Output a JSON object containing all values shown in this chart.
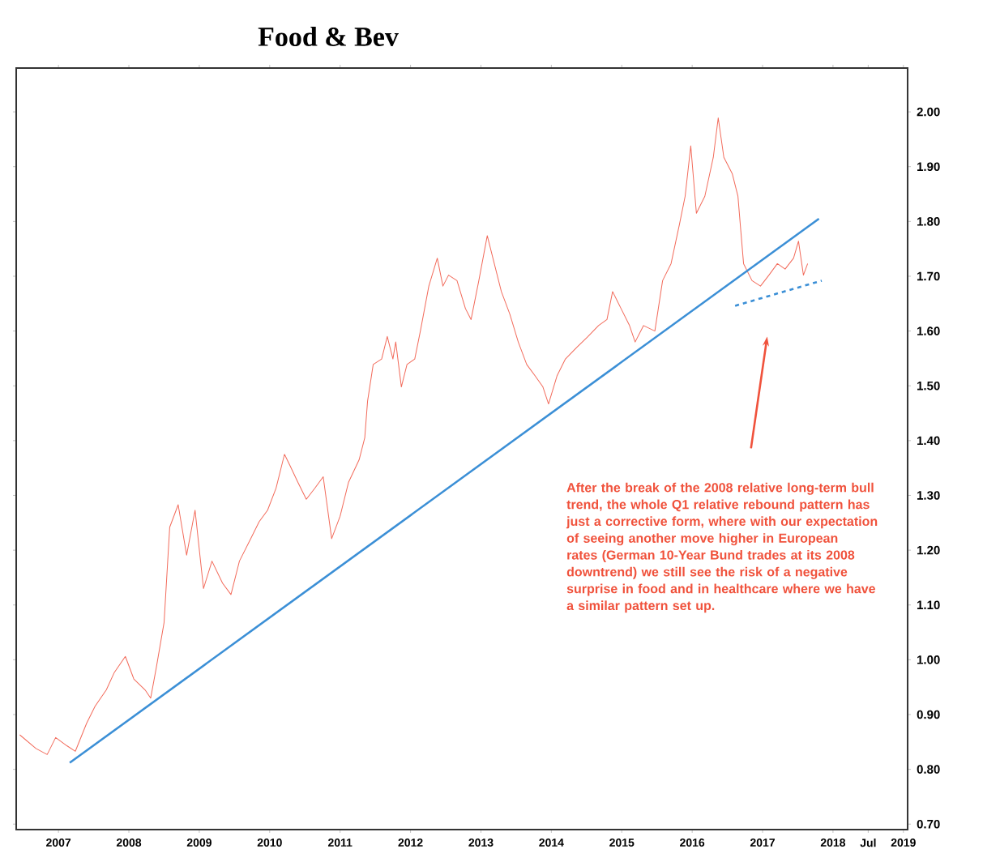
{
  "chart_data": {
    "type": "line",
    "title": "Food & Bev",
    "xlim": [
      2006.4,
      2019.06
    ],
    "ylim": [
      0.69,
      2.08
    ],
    "xticks": [
      2007,
      2008,
      2009,
      2010,
      2011,
      2012,
      2013,
      2014,
      2015,
      2016,
      2017,
      2018,
      {
        "value": 2018.5,
        "label": "Jul"
      },
      2019
    ],
    "yticks": [
      {
        "value": 0.7,
        "label": "0.70"
      },
      {
        "value": 0.8,
        "label": "0.80"
      },
      {
        "value": 0.9,
        "label": "0.90"
      },
      {
        "value": 1.0,
        "label": "1.00"
      },
      {
        "value": 1.1,
        "label": "1.10"
      },
      {
        "value": 1.2,
        "label": "1.20"
      },
      {
        "value": 1.3,
        "label": "1.30"
      },
      {
        "value": 1.4,
        "label": "1.40"
      },
      {
        "value": 1.5,
        "label": "1.50"
      },
      {
        "value": 1.6,
        "label": "1.60"
      },
      {
        "value": 1.7,
        "label": "1.70"
      },
      {
        "value": 1.8,
        "label": "1.80"
      },
      {
        "value": 1.9,
        "label": "1.90"
      },
      {
        "value": 2.0,
        "label": "2.00"
      }
    ],
    "grid": false,
    "series": [
      {
        "color": "#f26b5b",
        "x": [
          2006.45,
          2006.68,
          2006.84,
          2006.96,
          2007.12,
          2007.24,
          2007.4,
          2007.52,
          2007.68,
          2007.79,
          2007.95,
          2008.07,
          2008.23,
          2008.31,
          2008.39,
          2008.5,
          2008.58,
          2008.7,
          2008.82,
          2008.94,
          2009.06,
          2009.18,
          2009.33,
          2009.45,
          2009.57,
          2009.73,
          2009.85,
          2009.97,
          2010.09,
          2010.21,
          2010.29,
          2010.4,
          2010.52,
          2010.64,
          2010.76,
          2010.88,
          2011.0,
          2011.12,
          2011.27,
          2011.35,
          2011.39,
          2011.47,
          2011.59,
          2011.67,
          2011.75,
          2011.79,
          2011.87,
          2011.95,
          2012.06,
          2012.14,
          2012.26,
          2012.38,
          2012.46,
          2012.54,
          2012.66,
          2012.78,
          2012.86,
          2012.97,
          2013.09,
          2013.17,
          2013.29,
          2013.41,
          2013.53,
          2013.65,
          2013.77,
          2013.88,
          2013.96,
          2014.08,
          2014.2,
          2014.36,
          2014.52,
          2014.67,
          2014.79,
          2014.87,
          2014.99,
          2015.11,
          2015.19,
          2015.31,
          2015.47,
          2015.58,
          2015.7,
          2015.82,
          2015.9,
          2015.98,
          2016.06,
          2016.18,
          2016.3,
          2016.37,
          2016.45,
          2016.57,
          2016.65,
          2016.69,
          2016.73,
          2016.85,
          2016.97,
          2017.09,
          2017.21,
          2017.32,
          2017.44,
          2017.51,
          2017.58,
          2017.64
        ],
        "values": [
          0.863,
          0.838,
          0.827,
          0.858,
          0.843,
          0.833,
          0.884,
          0.915,
          0.945,
          0.976,
          1.006,
          0.965,
          0.945,
          0.93,
          0.986,
          1.068,
          1.242,
          1.283,
          1.191,
          1.273,
          1.13,
          1.18,
          1.14,
          1.119,
          1.18,
          1.221,
          1.252,
          1.273,
          1.313,
          1.375,
          1.354,
          1.324,
          1.293,
          1.313,
          1.334,
          1.221,
          1.262,
          1.324,
          1.365,
          1.405,
          1.472,
          1.539,
          1.549,
          1.59,
          1.549,
          1.58,
          1.498,
          1.539,
          1.549,
          1.6,
          1.682,
          1.733,
          1.682,
          1.702,
          1.692,
          1.641,
          1.621,
          1.692,
          1.774,
          1.733,
          1.672,
          1.631,
          1.58,
          1.539,
          1.518,
          1.498,
          1.467,
          1.518,
          1.549,
          1.57,
          1.59,
          1.61,
          1.621,
          1.672,
          1.641,
          1.61,
          1.58,
          1.61,
          1.6,
          1.692,
          1.723,
          1.795,
          1.846,
          1.938,
          1.815,
          1.846,
          1.917,
          1.989,
          1.917,
          1.887,
          1.846,
          1.784,
          1.723,
          1.692,
          1.682,
          1.702,
          1.723,
          1.713,
          1.733,
          1.764,
          1.702,
          1.723
        ]
      },
      {
        "color": "#3b8fd6",
        "x": [
          2007.16,
          2017.8
        ],
        "values": [
          0.812,
          1.805
        ]
      },
      {
        "color": "#3b8fd6",
        "line_style": "dashed",
        "x": [
          2016.61,
          2017.84
        ],
        "values": [
          1.646,
          1.692
        ]
      }
    ],
    "annotations": [
      "After the break of the 2008 relative long-term bull trend, the whole Q1 relative rebound pattern has just a corrective form, where with our expectation of seeing another move higher in European rates (German 10-Year Bund trades at its 2008 downtrend) we still see the risk of a negative surprise in food and in healthcare where we have a similar pattern set up."
    ]
  }
}
